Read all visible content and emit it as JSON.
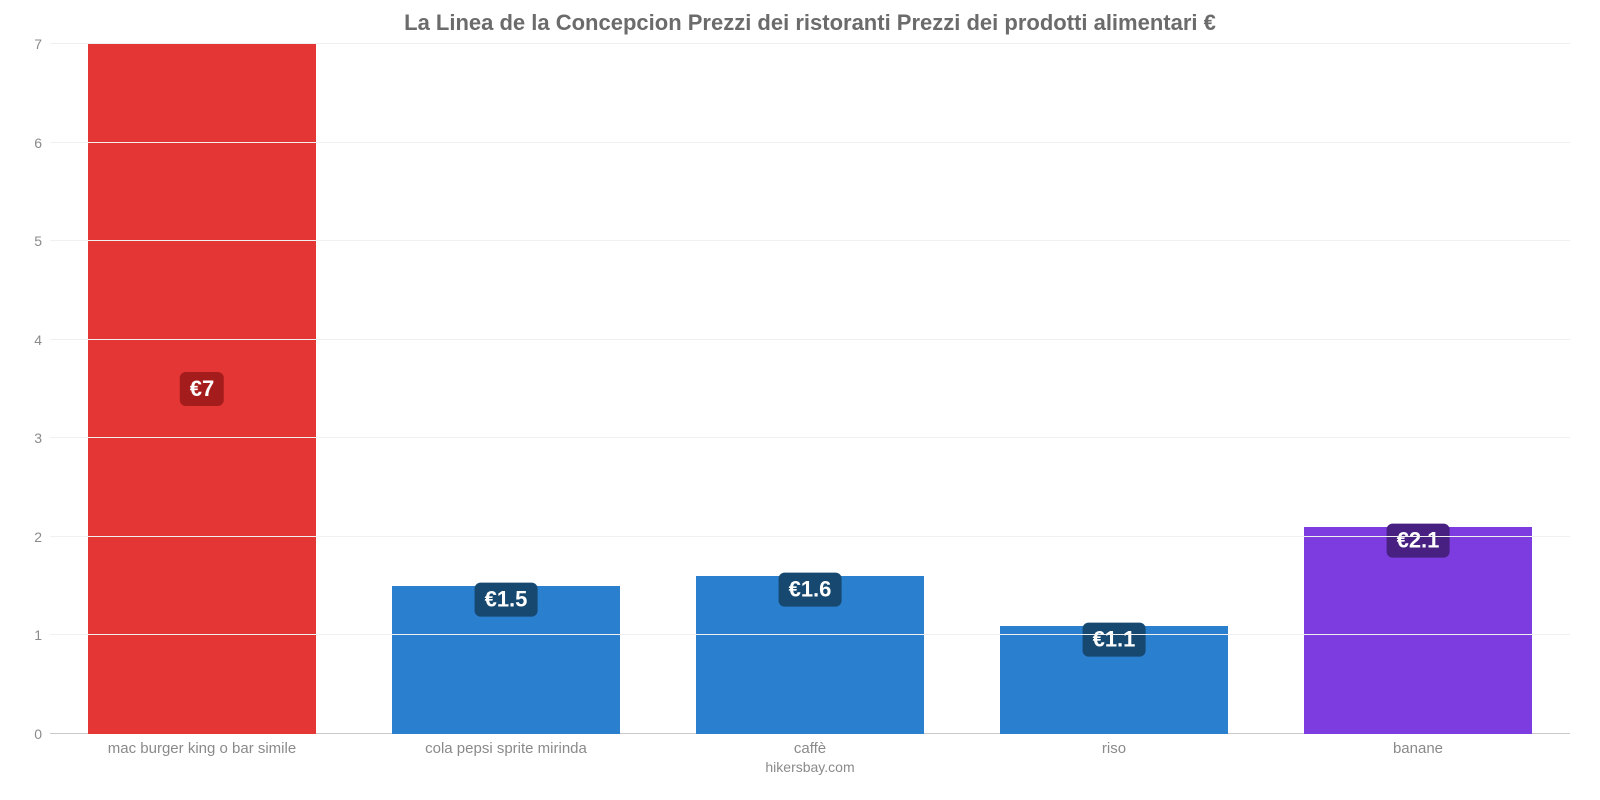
{
  "chart": {
    "type": "bar",
    "title": "La Linea de la Concepcion Prezzi dei ristoranti Prezzi dei prodotti alimentari €",
    "title_fontsize": 22,
    "title_color": "#6b6b6b",
    "footer": "hikersbay.com",
    "footer_fontsize": 14,
    "footer_color": "#8a8a8a",
    "background_color": "#ffffff",
    "grid_color": "#f0f0f0",
    "axis_line_color": "#c9c9c9",
    "tick_font_color": "#8a8a8a",
    "tick_fontsize": 14,
    "xlabel_font_color": "#8a8a8a",
    "xlabel_fontsize": 15,
    "ylim_min": 0,
    "ylim_max": 7,
    "ytick_step": 1,
    "yticks": [
      0,
      1,
      2,
      3,
      4,
      5,
      6,
      7
    ],
    "bar_width_pct": 75,
    "value_badge_fontsize": 22,
    "categories": [
      "mac burger king o bar simile",
      "cola pepsi sprite mirinda",
      "caffè",
      "riso",
      "banane"
    ],
    "values": [
      7,
      1.5,
      1.6,
      1.1,
      2.1
    ],
    "value_labels": [
      "€7",
      "€1.5",
      "€1.6",
      "€1.1",
      "€2.1"
    ],
    "bar_colors": [
      "#e53636",
      "#2a7fce",
      "#2a7fce",
      "#2a7fce",
      "#7d3ce0"
    ],
    "badge_colors": [
      "#a51c1c",
      "#17486f",
      "#17486f",
      "#17486f",
      "#472082"
    ]
  }
}
